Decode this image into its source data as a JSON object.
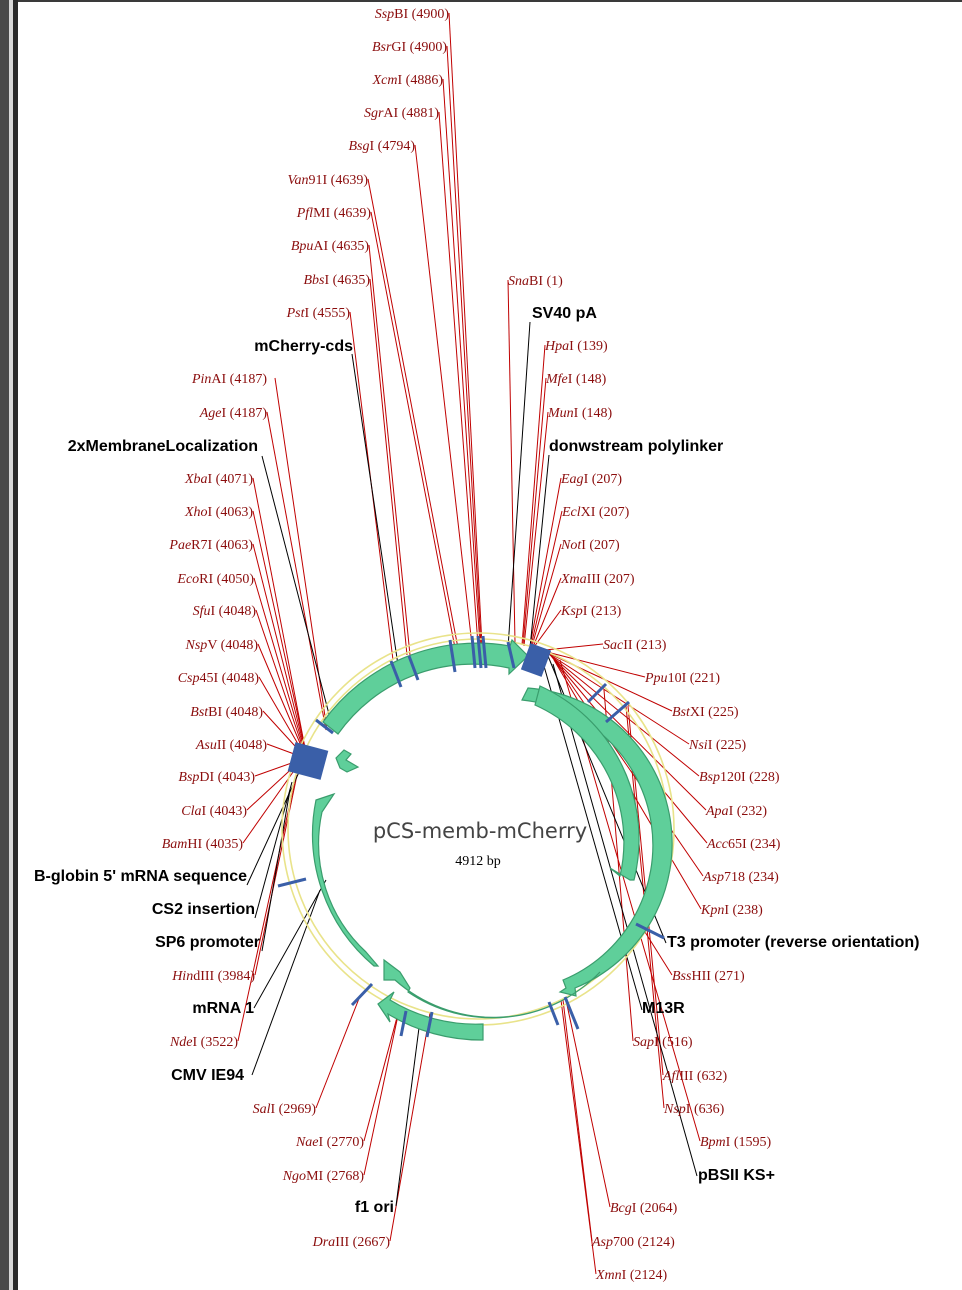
{
  "plasmid": {
    "name": "pCS-memb-mCherry",
    "length_label": "4912 bp"
  },
  "colors": {
    "arrow_fill": "#5fcf9a",
    "arrow_stroke": "#3a9d6d",
    "site_tick": "#3a5fa8",
    "enzyme_text": "#8b0d0d",
    "enzyme_line": "#c00000",
    "backbone": "#e9e38a"
  },
  "enzymes": [
    {
      "it": "Ssp",
      "rest": "BI (4900)"
    },
    {
      "it": "Bsr",
      "rest": "GI (4900)"
    },
    {
      "it": "Xcm",
      "rest": "I (4886)"
    },
    {
      "it": "Sgr",
      "rest": "AI (4881)"
    },
    {
      "it": "Bsg",
      "rest": "I (4794)"
    },
    {
      "it": "Van",
      "rest": "91I (4639)"
    },
    {
      "it": "Pfl",
      "rest": "MI (4639)"
    },
    {
      "it": "Bpu",
      "rest": "AI (4635)"
    },
    {
      "it": "Bbs",
      "rest": "I (4635)"
    },
    {
      "it": "Pst",
      "rest": "I (4555)"
    },
    {
      "it": "Pin",
      "rest": "AI (4187)"
    },
    {
      "it": "Age",
      "rest": "I (4187)"
    },
    {
      "it": "Xba",
      "rest": "I (4071)"
    },
    {
      "it": "Xho",
      "rest": "I (4063)"
    },
    {
      "it": "Pae",
      "rest": "R7I (4063)"
    },
    {
      "it": "Eco",
      "rest": "RI (4050)"
    },
    {
      "it": "Sfu",
      "rest": "I (4048)"
    },
    {
      "it": "Nsp",
      "rest": "V (4048)"
    },
    {
      "it": "Csp",
      "rest": "45I (4048)"
    },
    {
      "it": "Bst",
      "rest": "BI (4048)"
    },
    {
      "it": "Asu",
      "rest": "II (4048)"
    },
    {
      "it": "Bsp",
      "rest": "DI (4043)"
    },
    {
      "it": "Cla",
      "rest": "I (4043)"
    },
    {
      "it": "Bam",
      "rest": "HI (4035)"
    },
    {
      "it": "Hin",
      "rest": "dIII (3984)"
    },
    {
      "it": "Nde",
      "rest": "I (3522)"
    },
    {
      "it": "Sal",
      "rest": "I (2969)"
    },
    {
      "it": "Nae",
      "rest": "I (2770)"
    },
    {
      "it": "Ngo",
      "rest": "MI (2768)"
    },
    {
      "it": "Dra",
      "rest": "III (2667)"
    },
    {
      "it": "Sna",
      "rest": "BI (1)"
    },
    {
      "it": "Hpa",
      "rest": "I (139)"
    },
    {
      "it": "Mfe",
      "rest": "I (148)"
    },
    {
      "it": "Mun",
      "rest": "I (148)"
    },
    {
      "it": "Eag",
      "rest": "I (207)"
    },
    {
      "it": "Ecl",
      "rest": "XI (207)"
    },
    {
      "it": "Not",
      "rest": "I (207)"
    },
    {
      "it": "Xma",
      "rest": "III (207)"
    },
    {
      "it": "Ksp",
      "rest": "I (213)"
    },
    {
      "it": "Sac",
      "rest": "II (213)"
    },
    {
      "it": "Ppu",
      "rest": "10I (221)"
    },
    {
      "it": "Bst",
      "rest": "XI (225)"
    },
    {
      "it": "Nsi",
      "rest": "I (225)"
    },
    {
      "it": "Bsp",
      "rest": "120I (228)"
    },
    {
      "it": "Apa",
      "rest": "I (232)"
    },
    {
      "it": "Acc",
      "rest": "65I (234)"
    },
    {
      "it": "Asp",
      "rest": "718 (234)"
    },
    {
      "it": "Kpn",
      "rest": "I (238)"
    },
    {
      "it": "Bss",
      "rest": "HII (271)"
    },
    {
      "it": "Sap",
      "rest": "I (516)"
    },
    {
      "it": "Afl",
      "rest": "III (632)"
    },
    {
      "it": "Nsp",
      "rest": "I (636)"
    },
    {
      "it": "Bpm",
      "rest": "I (1595)"
    },
    {
      "it": "Bcg",
      "rest": "I (2064)"
    },
    {
      "it": "Asp",
      "rest": "700 (2124)"
    },
    {
      "it": "Xmn",
      "rest": "I (2124)"
    }
  ],
  "features": [
    "SV40 pA",
    "mCherry-cds",
    "2xMembraneLocalization",
    "donwstream polylinker",
    "B-globin 5' mRNA sequence",
    "CS2 insertion",
    "SP6 promoter",
    "T3 promoter (reverse orientation)",
    "mRNA 1",
    "M13R",
    "CMV IE94",
    "pBSII KS+",
    "f1 ori"
  ]
}
